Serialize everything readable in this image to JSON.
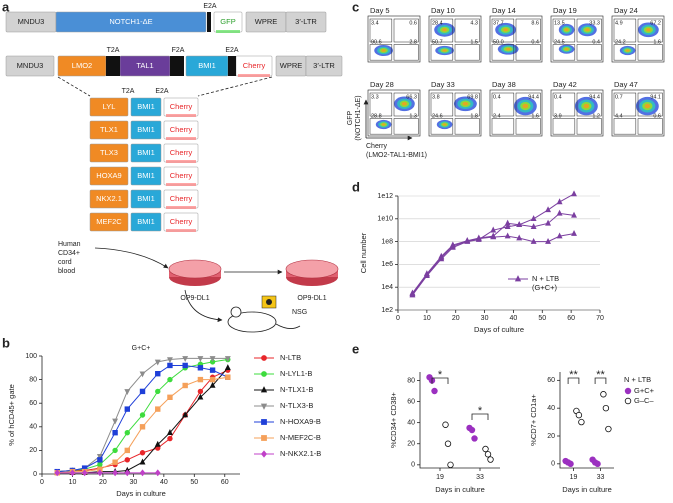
{
  "panel_labels": [
    "a",
    "b",
    "c",
    "d",
    "e"
  ],
  "diagram": {
    "vector1": {
      "boxes": [
        "MNDU3",
        "NOTCH1-ΔE",
        "GFP",
        "WPRE",
        "3′-LTR"
      ],
      "linkers": [
        "E2A"
      ]
    },
    "vector2": {
      "boxes": [
        "MNDU3",
        "LMO2",
        "TAL1",
        "BMI1",
        "Cherry",
        "WPRE",
        "3′-LTR"
      ],
      "linkers": [
        "T2A",
        "F2A",
        "E2A"
      ]
    },
    "variants": {
      "linkers": [
        "T2A",
        "E2A"
      ],
      "rows": [
        [
          "LYL",
          "BMI1",
          "Cherry"
        ],
        [
          "TLX1",
          "BMI1",
          "Cherry"
        ],
        [
          "TLX3",
          "BMI1",
          "Cherry"
        ],
        [
          "HOXA9",
          "BMI1",
          "Cherry"
        ],
        [
          "NKX2.1",
          "BMI1",
          "Cherry"
        ],
        [
          "MEF2C",
          "BMI1",
          "Cherry"
        ]
      ]
    },
    "source": [
      "Human",
      "CD34+",
      "cord",
      "blood"
    ],
    "dishes": [
      "OP9-DL1",
      "OP9-DL1"
    ],
    "mouse": "NSG"
  },
  "flow": {
    "axis_y": [
      "GFP",
      "(NOTCH1-ΔE)"
    ],
    "axis_x": [
      "Cherry",
      "(LMO2-TAL1-BMI1)"
    ],
    "plots": [
      {
        "day": "Day 5",
        "quadrants": [
          "3.4",
          "0.6",
          "90.6",
          "2.8"
        ]
      },
      {
        "day": "Day 10",
        "quadrants": [
          "28.4",
          "4.3",
          "50.7",
          "1.5"
        ]
      },
      {
        "day": "Day 14",
        "quadrants": [
          "37.7",
          "8.6",
          "50.0",
          "0.4"
        ]
      },
      {
        "day": "Day 19",
        "quadrants": [
          "13.5",
          "33.3",
          "24.5",
          "0.4"
        ]
      },
      {
        "day": "Day 24",
        "quadrants": [
          "4.9",
          "67.2",
          "24.2",
          "1.6"
        ]
      },
      {
        "day": "Day 28",
        "quadrants": [
          "3.3",
          "66.3",
          "28.8",
          "1.3"
        ]
      },
      {
        "day": "Day 33",
        "quadrants": [
          "3.8",
          "69.8",
          "24.6",
          "1.8"
        ]
      },
      {
        "day": "Day 38",
        "quadrants": [
          "0.4",
          "94.4",
          "2.4",
          "1.6"
        ]
      },
      {
        "day": "Day 42",
        "quadrants": [
          "0.4",
          "94.4",
          "3.9",
          "1.2"
        ]
      },
      {
        "day": "Day 47",
        "quadrants": [
          "0.7",
          "94.1",
          "4.4",
          "0.6"
        ]
      }
    ]
  },
  "chart_data": [
    {
      "type": "line",
      "title": "G+C+",
      "xlabel": "Days in culture",
      "ylabel": "% of hCD45+ gate",
      "x": [
        5,
        10,
        14,
        19,
        24,
        28,
        33,
        38,
        42,
        47,
        52,
        56,
        61
      ],
      "xlim": [
        0,
        65
      ],
      "xticks": [
        0,
        10,
        20,
        30,
        40,
        50,
        60
      ],
      "ylim": [
        0,
        100
      ],
      "yticks": [
        0,
        20,
        40,
        60,
        80,
        100
      ],
      "legend": "outside-right",
      "series": [
        {
          "name": "N-LTB",
          "color": "#e8262a",
          "marker": "circle",
          "values": [
            2,
            3,
            3,
            5,
            8,
            12,
            18,
            22,
            30,
            50,
            70,
            82,
            88
          ]
        },
        {
          "name": "N-LYL1-B",
          "color": "#3ddc3d",
          "marker": "circle",
          "values": [
            2,
            3,
            4,
            8,
            20,
            35,
            50,
            70,
            80,
            90,
            93,
            95,
            97
          ]
        },
        {
          "name": "N-TLX1-B",
          "color": "#111111",
          "marker": "triangle",
          "values": [
            1,
            1,
            1,
            2,
            2,
            3,
            10,
            25,
            35,
            50,
            65,
            75,
            90
          ]
        },
        {
          "name": "N-TLX3-B",
          "color": "#8c8c8c",
          "marker": "inverted",
          "values": [
            2,
            3,
            5,
            15,
            45,
            70,
            85,
            95,
            97,
            98,
            98,
            98,
            98
          ]
        },
        {
          "name": "N-HOXA9-B",
          "color": "#1f3fd8",
          "marker": "square",
          "values": [
            2,
            3,
            5,
            12,
            35,
            55,
            70,
            85,
            92,
            92,
            90,
            88,
            82
          ]
        },
        {
          "name": "N-MEF2C-B",
          "color": "#f5a05a",
          "marker": "square",
          "values": [
            1,
            2,
            2,
            4,
            10,
            20,
            40,
            55,
            65,
            75,
            80,
            80,
            82
          ]
        },
        {
          "name": "N-NKX2.1-B",
          "color": "#c040c8",
          "marker": "diamond",
          "values": [
            1,
            1,
            1,
            1,
            1,
            1,
            1,
            1,
            null,
            null,
            null,
            null,
            null
          ]
        }
      ]
    },
    {
      "type": "line",
      "xlabel": "Days of culture",
      "ylabel": "Cell number",
      "log_y": true,
      "grid": true,
      "legend": "lower-right",
      "x": [
        5,
        10,
        15,
        19,
        24,
        28,
        33,
        38,
        42,
        47,
        52,
        56,
        61
      ],
      "xlim": [
        0,
        70
      ],
      "xticks": [
        0,
        10,
        20,
        30,
        40,
        50,
        60,
        70
      ],
      "ylim": [
        100,
        1000000000000
      ],
      "yticks": [
        {
          "value": 100,
          "label": "1e2"
        },
        {
          "value": 10000,
          "label": "1e4"
        },
        {
          "value": 1000000,
          "label": "1e6"
        },
        {
          "value": 100000000,
          "label": "1e8"
        },
        {
          "value": 10000000000,
          "label": "1e10"
        },
        {
          "value": 1000000000000,
          "label": "1e12"
        }
      ],
      "series": [
        {
          "name": "N + LTB (G+C+)",
          "color": "#7b3fa0",
          "marker": "triangle",
          "replicates": [
            [
              2000,
              100000,
              3000000,
              30000000,
              100000000,
              150000000,
              1000000000,
              2000000000,
              3000000000,
              10000000000,
              60000000000,
              300000000000,
              1500000000000
            ],
            [
              3000,
              150000,
              5000000,
              50000000,
              120000000,
              200000000,
              300000000,
              4000000000,
              3000000000,
              2000000000,
              4000000000,
              30000000000,
              20000000000
            ],
            [
              2500,
              120000,
              4000000,
              40000000,
              110000000,
              180000000,
              250000000,
              300000000,
              200000000,
              100000000,
              100000000,
              300000000,
              500000000
            ]
          ]
        }
      ]
    },
    {
      "type": "dot",
      "xlabel": "Days in culture",
      "ylabel": "%CD34+ CD38+",
      "categories": [
        "19",
        "33"
      ],
      "ylim": [
        -3,
        88
      ],
      "yticks": [
        0,
        20,
        40,
        60,
        80
      ],
      "annotations": [
        "*",
        "*"
      ],
      "series": [
        {
          "name": "G+C+",
          "color": "#9b30c0",
          "filled": true,
          "values": [
            [
              83,
              80,
              70
            ],
            [
              35,
              33,
              25
            ]
          ]
        },
        {
          "name": "G–C–",
          "color": "#111111",
          "filled": false,
          "values": [
            [
              38,
              20,
              0
            ],
            [
              15,
              10,
              5
            ]
          ]
        }
      ]
    },
    {
      "type": "dot",
      "xlabel": "Days in culture",
      "ylabel": "%CD7+ CD1a+",
      "categories": [
        "19",
        "33"
      ],
      "ylim": [
        -3,
        66
      ],
      "yticks": [
        0,
        20,
        40,
        60
      ],
      "annotations": [
        "**",
        "**"
      ],
      "legend": "outside-right",
      "legend_title": "N + LTB",
      "series": [
        {
          "name": "G+C+",
          "color": "#9b30c0",
          "filled": true,
          "values": [
            [
              2,
              1,
              0
            ],
            [
              3,
              1,
              0
            ]
          ]
        },
        {
          "name": "G–C–",
          "color": "#111111",
          "filled": false,
          "values": [
            [
              38,
              35,
              30
            ],
            [
              50,
              40,
              25
            ]
          ]
        }
      ]
    }
  ]
}
